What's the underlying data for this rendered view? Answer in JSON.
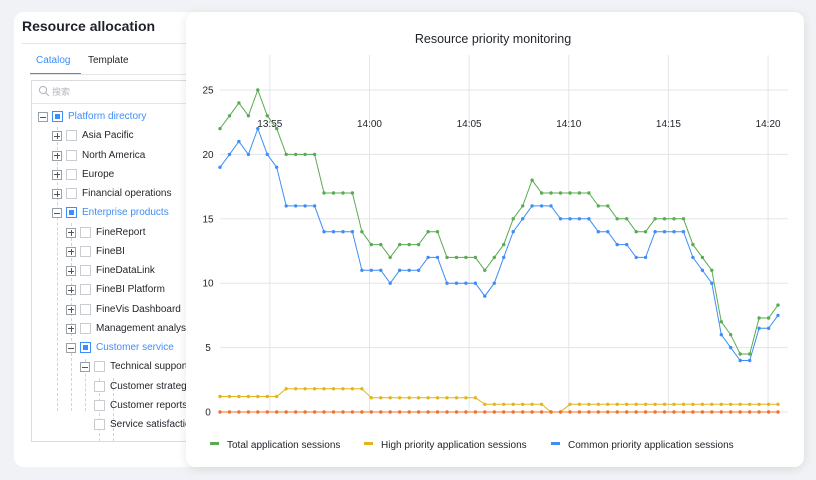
{
  "panel": {
    "title": "Resource allocation",
    "tabs": [
      {
        "label": "Catalog",
        "active": true
      },
      {
        "label": "Template",
        "active": false
      }
    ],
    "search_placeholder": "搜索"
  },
  "tree": [
    {
      "label": "Platform directory",
      "level": 0,
      "expander": "minus",
      "check": "partial"
    },
    {
      "label": "Asia Pacific",
      "level": 1,
      "expander": "plus",
      "check": "none"
    },
    {
      "label": "North America",
      "level": 1,
      "expander": "plus",
      "check": "none"
    },
    {
      "label": "Europe",
      "level": 1,
      "expander": "plus",
      "check": "none"
    },
    {
      "label": "Financial operations",
      "level": 1,
      "expander": "plus",
      "check": "none"
    },
    {
      "label": "Enterprise products",
      "level": 1,
      "expander": "minus",
      "check": "partial"
    },
    {
      "label": "FineReport",
      "level": 2,
      "expander": "plus",
      "check": "none"
    },
    {
      "label": "FineBI",
      "level": 2,
      "expander": "plus",
      "check": "none"
    },
    {
      "label": "FineDataLink",
      "level": 2,
      "expander": "plus",
      "check": "none"
    },
    {
      "label": "FineBI Platform",
      "level": 2,
      "expander": "plus",
      "check": "none"
    },
    {
      "label": "FineVis Dashboard",
      "level": 2,
      "expander": "plus",
      "check": "none"
    },
    {
      "label": "Management analysis",
      "level": 2,
      "expander": "plus",
      "check": "none"
    },
    {
      "label": "Customer service",
      "level": 2,
      "expander": "minus",
      "check": "partial"
    },
    {
      "label": "Technical support",
      "level": 3,
      "expander": "minus",
      "check": "none"
    },
    {
      "label": "Customer strategy",
      "level": 4,
      "expander": "none",
      "check": "none"
    },
    {
      "label": "Customer reports",
      "level": 4,
      "expander": "none",
      "check": "none"
    },
    {
      "label": "Service satisfaction",
      "level": 4,
      "expander": "none",
      "check": "none"
    }
  ],
  "colors": {
    "accent": "#3e8ef7",
    "total": "#5aab52",
    "high": "#e3b51a",
    "common": "#3e8ef7",
    "zero": "#f0712b"
  },
  "chart_data": {
    "type": "line",
    "title": "Resource priority monitoring",
    "xlabel": "",
    "ylabel": "",
    "ylim": [
      0,
      25
    ],
    "yticks": [
      0,
      5,
      10,
      15,
      20,
      25
    ],
    "x_minutes_start": 0,
    "x_minutes_end": 28.5,
    "xticks": [
      {
        "label": "13:55",
        "minute": 2.5
      },
      {
        "label": "14:00",
        "minute": 7.5
      },
      {
        "label": "14:05",
        "minute": 12.5
      },
      {
        "label": "14:10",
        "minute": 17.5
      },
      {
        "label": "14:15",
        "minute": 22.5
      },
      {
        "label": "14:20",
        "minute": 27.5
      }
    ],
    "grid": {
      "x": true,
      "y": true
    },
    "legend": "bottom",
    "series": [
      {
        "name": "Total application sessions",
        "color": "#5aab52",
        "values": [
          22,
          23,
          24,
          23,
          25,
          23,
          22,
          20,
          20,
          20,
          20,
          17,
          17,
          17,
          17,
          14,
          13,
          13,
          12,
          13,
          13,
          13,
          14,
          14,
          12,
          12,
          12,
          12,
          11,
          12,
          13,
          15,
          16,
          18,
          17,
          17,
          17,
          17,
          17,
          17,
          16,
          16,
          15,
          15,
          14,
          14,
          15,
          15,
          15,
          15,
          13,
          12,
          11,
          7,
          6,
          4.5,
          4.5,
          7.3,
          7.3,
          8.3
        ]
      },
      {
        "name": "High priority application sessions",
        "color": "#e3b51a",
        "values": [
          1.2,
          1.2,
          1.2,
          1.2,
          1.2,
          1.2,
          1.2,
          1.8,
          1.8,
          1.8,
          1.8,
          1.8,
          1.8,
          1.8,
          1.8,
          1.8,
          1.1,
          1.1,
          1.1,
          1.1,
          1.1,
          1.1,
          1.1,
          1.1,
          1.1,
          1.1,
          1.1,
          1.1,
          0.6,
          0.6,
          0.6,
          0.6,
          0.6,
          0.6,
          0.6,
          0,
          0,
          0.6,
          0.6,
          0.6,
          0.6,
          0.6,
          0.6,
          0.6,
          0.6,
          0.6,
          0.6,
          0.6,
          0.6,
          0.6,
          0.6,
          0.6,
          0.6,
          0.6,
          0.6,
          0.6,
          0.6,
          0.6,
          0.6,
          0.6
        ]
      },
      {
        "name": "Common priority application sessions",
        "color": "#3e8ef7",
        "values": [
          19,
          20,
          21,
          20,
          22,
          20,
          19,
          16,
          16,
          16,
          16,
          14,
          14,
          14,
          14,
          11,
          11,
          11,
          10,
          11,
          11,
          11,
          12,
          12,
          10,
          10,
          10,
          10,
          9,
          10,
          12,
          14,
          15,
          16,
          16,
          16,
          15,
          15,
          15,
          15,
          14,
          14,
          13,
          13,
          12,
          12,
          14,
          14,
          14,
          14,
          12,
          11,
          10,
          6,
          5,
          4,
          4,
          6.5,
          6.5,
          7.5
        ]
      },
      {
        "name": "",
        "color": "#f0712b",
        "values": [
          0,
          0,
          0,
          0,
          0,
          0,
          0,
          0,
          0,
          0,
          0,
          0,
          0,
          0,
          0,
          0,
          0,
          0,
          0,
          0,
          0,
          0,
          0,
          0,
          0,
          0,
          0,
          0,
          0,
          0,
          0,
          0,
          0,
          0,
          0,
          0,
          0,
          0,
          0,
          0,
          0,
          0,
          0,
          0,
          0,
          0,
          0,
          0,
          0,
          0,
          0,
          0,
          0,
          0,
          0,
          0,
          0,
          0,
          0,
          0
        ]
      }
    ]
  }
}
